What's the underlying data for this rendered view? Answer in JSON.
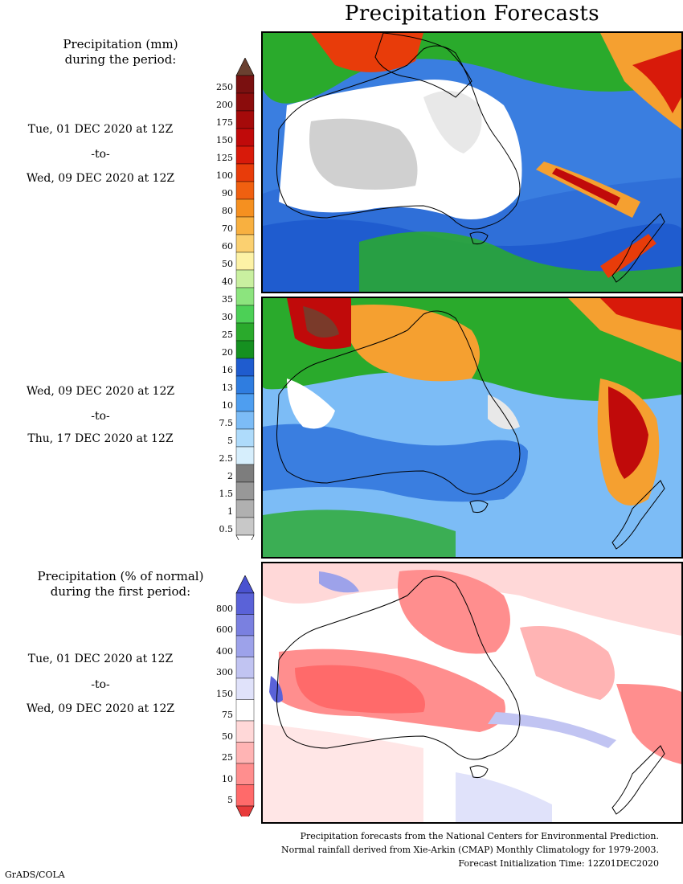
{
  "title": "Precipitation Forecasts",
  "panel1": {
    "label_line1": "Precipitation (mm)",
    "label_line2": "during the period:",
    "from": "Tue, 01 DEC 2020 at 12Z",
    "sep": "-to-",
    "to": "Wed, 09 DEC 2020 at 12Z"
  },
  "panel2": {
    "from": "Wed, 09 DEC 2020 at 12Z",
    "sep": "-to-",
    "to": "Thu, 17 DEC 2020 at 12Z"
  },
  "panel3": {
    "label_line1": "Precipitation (% of normal)",
    "label_line2": "during the first period:",
    "from": "Tue, 01 DEC 2020 at 12Z",
    "sep": "-to-",
    "to": "Wed, 09 DEC 2020 at 12Z"
  },
  "mm_scale": {
    "labels": [
      "250",
      "200",
      "175",
      "150",
      "125",
      "100",
      "90",
      "80",
      "70",
      "60",
      "50",
      "40",
      "35",
      "30",
      "25",
      "20",
      "16",
      "13",
      "10",
      "7.5",
      "5",
      "2.5",
      "2",
      "1.5",
      "1",
      "0.5"
    ],
    "colors": [
      "#7a1010",
      "#8b0c0c",
      "#a50a0a",
      "#c00a0a",
      "#d81a0a",
      "#e83c0a",
      "#f06010",
      "#f59020",
      "#f8b040",
      "#fbd070",
      "#fdf2a6",
      "#c9f0a0",
      "#8ce47e",
      "#4cd056",
      "#2aaa2c",
      "#159020",
      "#1f5ccf",
      "#2f7de0",
      "#4e9ef0",
      "#7cbcf6",
      "#aedbfb",
      "#d6eefc",
      "#7d7d7d",
      "#989898",
      "#b0b0b0",
      "#c8c8c8"
    ],
    "top_color": "#6a4030",
    "bottom_color": "#ffffff"
  },
  "pct_scale": {
    "labels": [
      "800",
      "600",
      "400",
      "300",
      "150",
      "75",
      "50",
      "25",
      "10",
      "5"
    ],
    "colors": [
      "#5a62d8",
      "#7a80e0",
      "#9da2ea",
      "#c1c4f2",
      "#e0e2fa",
      "#ffffff",
      "#ffd8d8",
      "#ffb4b4",
      "#ff8e8e",
      "#ff6a6a"
    ],
    "top_color": "#4a52d0",
    "bottom_color": "#e83a3a"
  },
  "footer": {
    "line1": "Precipitation forecasts from the National Centers for Environmental Prediction.",
    "line2": "Normal rainfall derived from Xie-Arkin (CMAP) Monthly Climatology for 1979-2003.",
    "line3": "Forecast Initialization Time: 12Z01DEC2020"
  },
  "credit": "GrADS/COLA"
}
